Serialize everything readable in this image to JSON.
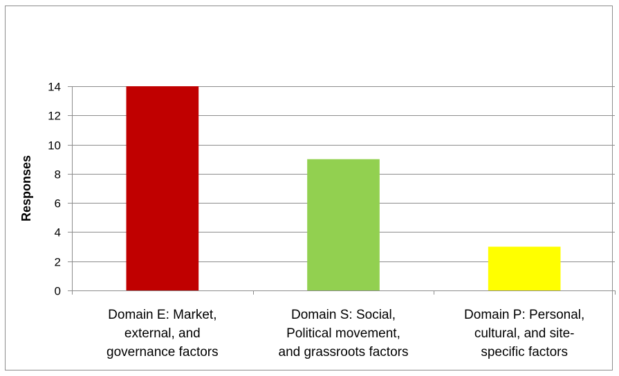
{
  "chart_data": {
    "type": "bar",
    "categories": [
      [
        "Domain E: Market,",
        "external, and",
        "governance factors"
      ],
      [
        "Domain S: Social,",
        "Political movement,",
        "and grassroots factors"
      ],
      [
        "Domain P: Personal,",
        "cultural, and site-",
        "specific factors"
      ]
    ],
    "values": [
      14,
      9,
      3
    ],
    "colors": [
      "#c00000",
      "#92d050",
      "#ffff00"
    ],
    "ylabel": "Responses",
    "xlabel": "",
    "title": "",
    "ylim": [
      0,
      14
    ],
    "yticks": [
      0,
      2,
      4,
      6,
      8,
      10,
      12,
      14
    ],
    "grid": true,
    "legend": "none"
  }
}
